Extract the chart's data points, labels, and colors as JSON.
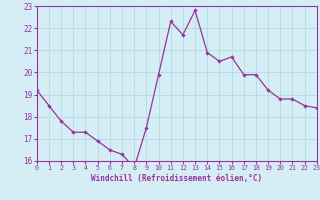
{
  "x": [
    0,
    1,
    2,
    3,
    4,
    5,
    6,
    7,
    8,
    9,
    10,
    11,
    12,
    13,
    14,
    15,
    16,
    17,
    18,
    19,
    20,
    21,
    22,
    23
  ],
  "y": [
    19.2,
    18.5,
    17.8,
    17.3,
    17.3,
    16.9,
    16.5,
    16.3,
    15.7,
    17.5,
    19.9,
    22.3,
    21.7,
    22.8,
    20.9,
    20.5,
    20.7,
    19.9,
    19.9,
    19.2,
    18.8,
    18.8,
    18.5,
    18.4
  ],
  "line_color": "#993399",
  "marker": "D",
  "marker_size": 2.2,
  "bg_color": "#d5eef5",
  "grid_color": "#b8dce8",
  "xlabel": "Windchill (Refroidissement éolien,°C)",
  "xlabel_color": "#993399",
  "tick_color": "#993399",
  "spine_color": "#993399",
  "ylim": [
    16,
    23
  ],
  "xlim": [
    0,
    23
  ],
  "yticks": [
    16,
    17,
    18,
    19,
    20,
    21,
    22,
    23
  ],
  "xticks": [
    0,
    1,
    2,
    3,
    4,
    5,
    6,
    7,
    8,
    9,
    10,
    11,
    12,
    13,
    14,
    15,
    16,
    17,
    18,
    19,
    20,
    21,
    22,
    23
  ]
}
